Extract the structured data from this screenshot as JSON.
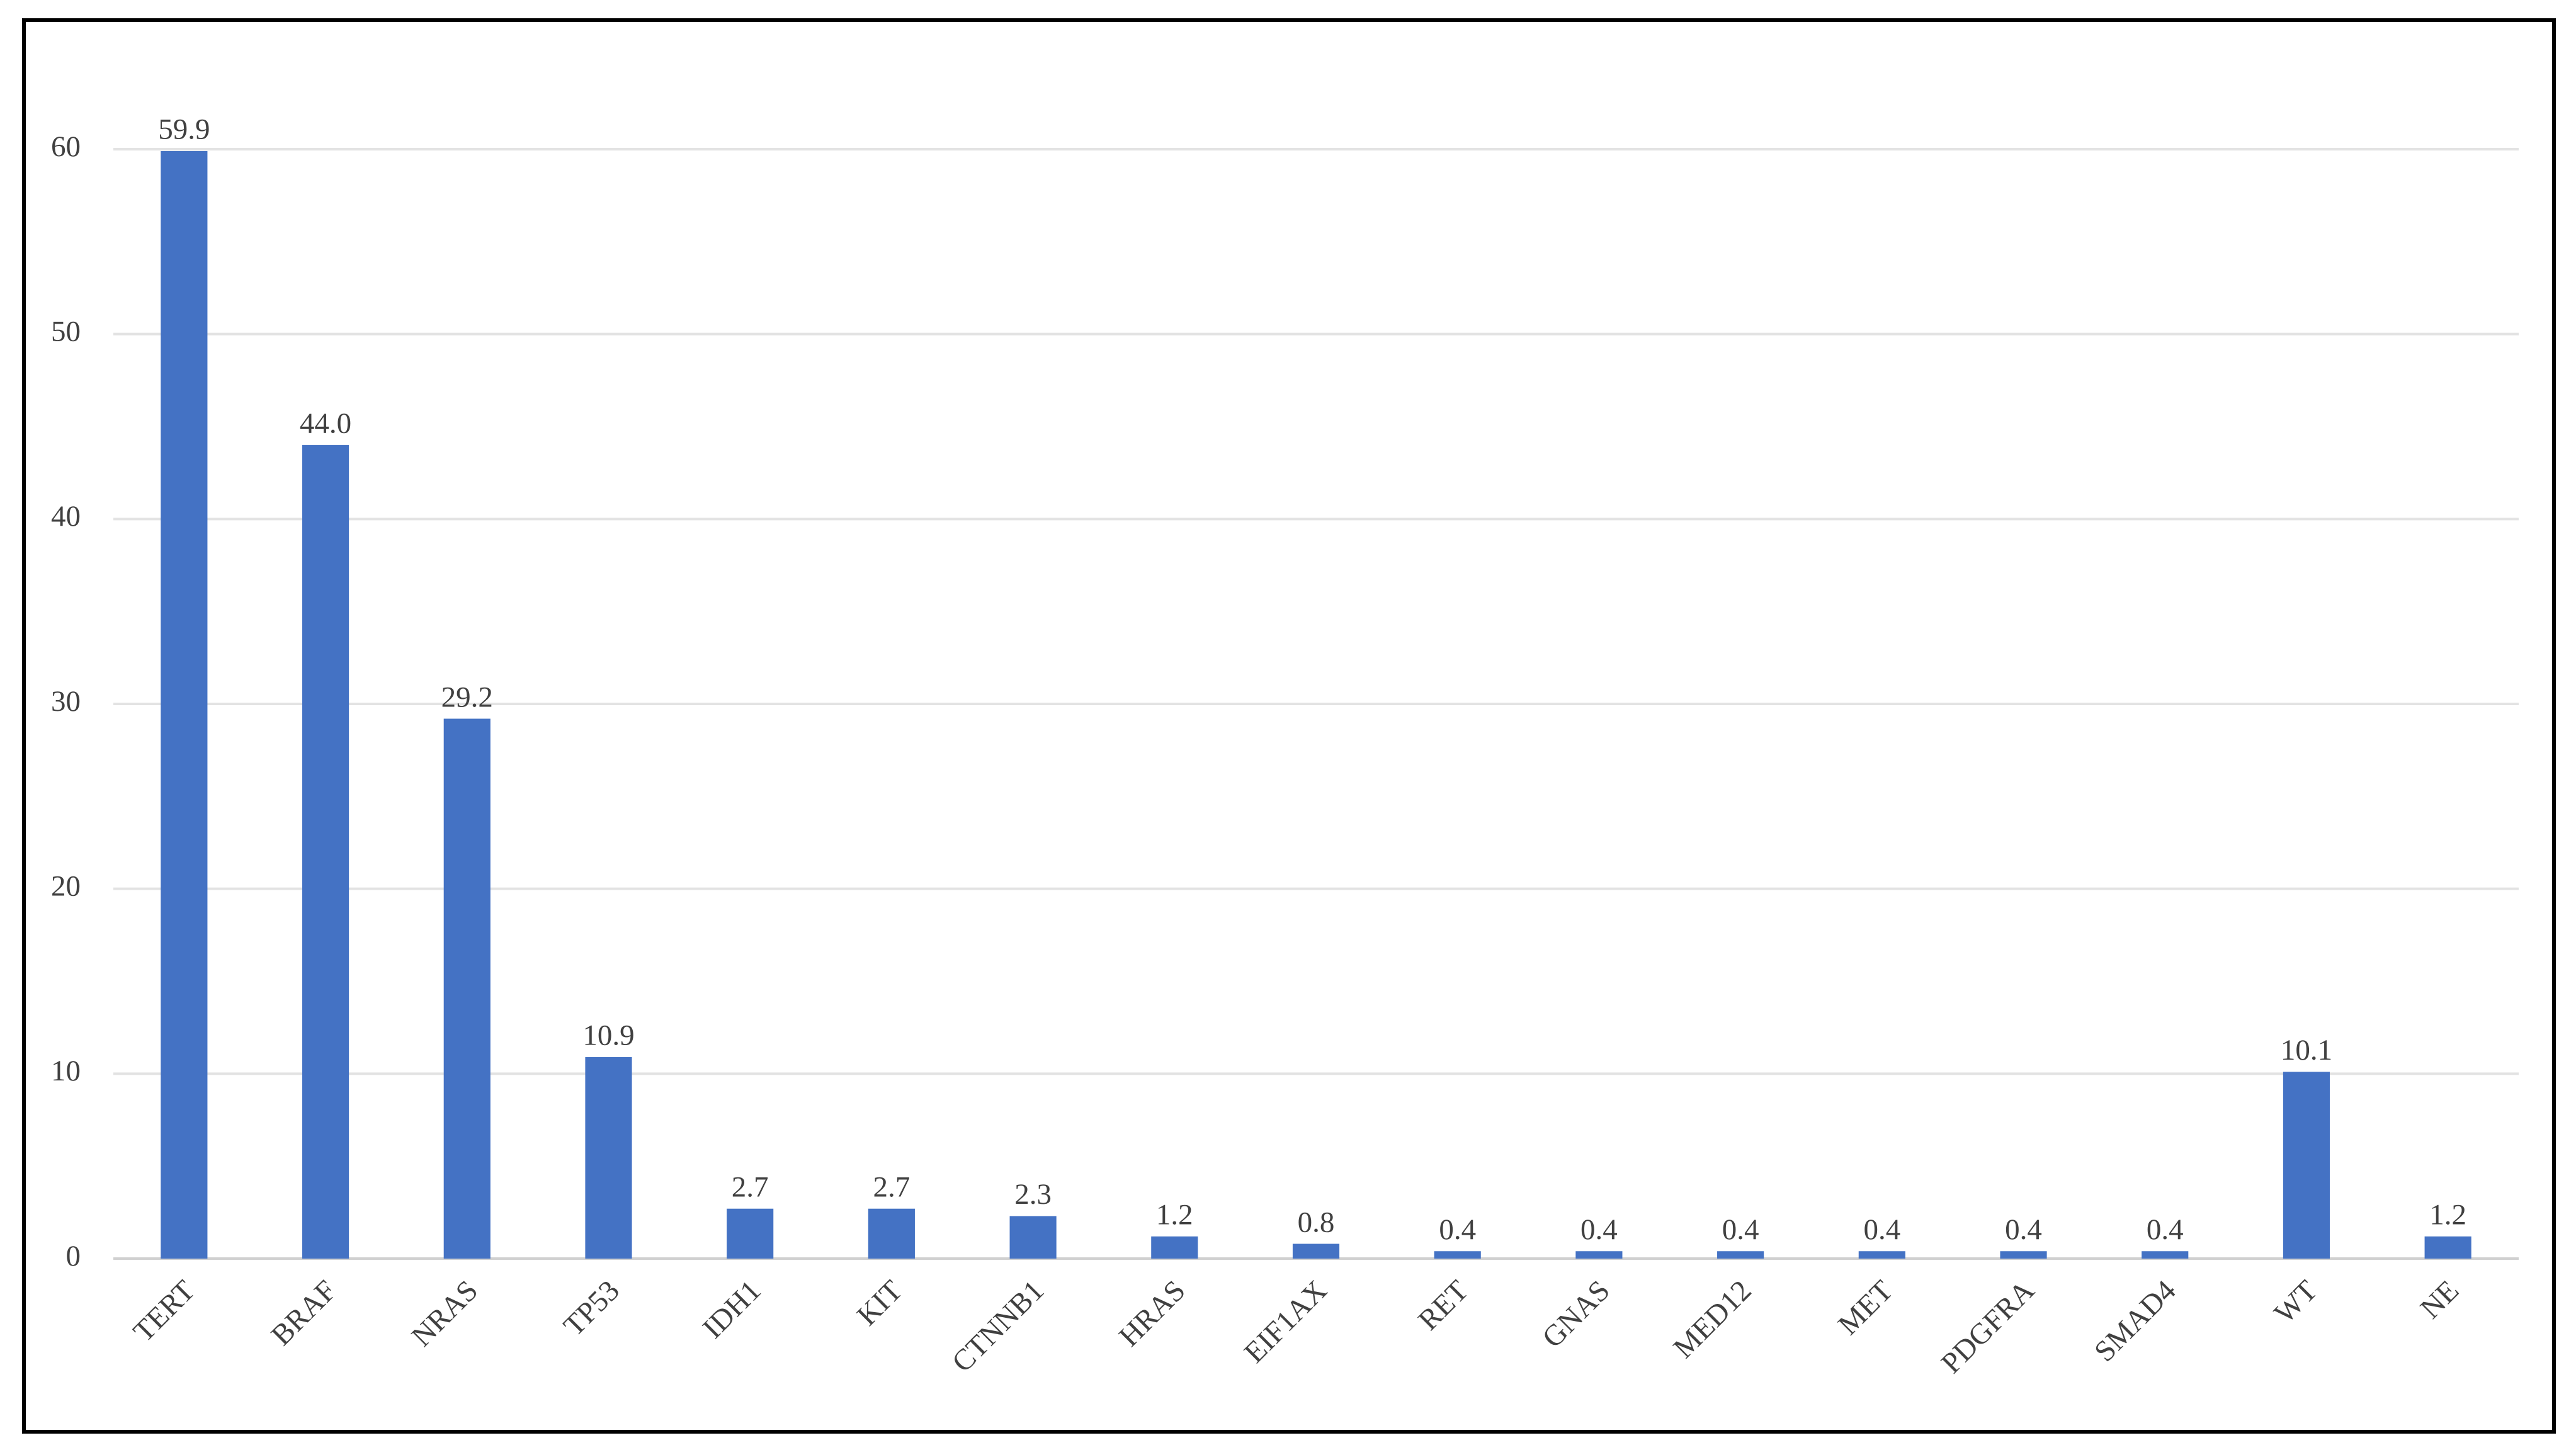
{
  "chart_data": {
    "type": "bar",
    "categories": [
      "TERT",
      "BRAF",
      "NRAS",
      "TP53",
      "IDH1",
      "KIT",
      "CTNNB1",
      "HRAS",
      "EIF1AX",
      "RET",
      "GNAS",
      "MED12",
      "MET",
      "PDGFRA",
      "SMAD4",
      "WT",
      "NE"
    ],
    "values": [
      59.9,
      44.0,
      29.2,
      10.9,
      2.7,
      2.7,
      2.3,
      1.2,
      0.8,
      0.4,
      0.4,
      0.4,
      0.4,
      0.4,
      0.4,
      10.1,
      1.2
    ],
    "value_labels": [
      "59.9",
      "44.0",
      "29.2",
      "10.9",
      "2.7",
      "2.7",
      "2.3",
      "1.2",
      "0.8",
      "0.4",
      "0.4",
      "0.4",
      "0.4",
      "0.4",
      "0.4",
      "10.1",
      "1.2"
    ],
    "color": "#4472c4",
    "ylim": [
      0,
      60
    ],
    "yticks": [
      0,
      10,
      20,
      30,
      40,
      50,
      60
    ],
    "grid": true
  }
}
